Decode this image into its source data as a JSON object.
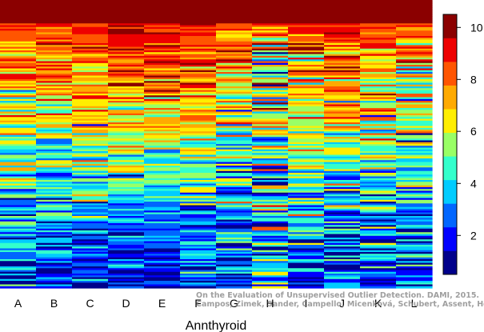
{
  "chart_data": {
    "type": "heatmap",
    "title": "",
    "xlabel": "Annthyroid",
    "ylabel": "",
    "categories": [
      "A",
      "B",
      "C",
      "D",
      "E",
      "F",
      "G",
      "H",
      "I",
      "J",
      "K",
      "L"
    ],
    "colorbar": {
      "range": [
        0.5,
        10.5
      ],
      "ticks": [
        2,
        4,
        6,
        8,
        10
      ],
      "colors": [
        "#00008B",
        "#0000FF",
        "#0066FF",
        "#00CCFF",
        "#33FFCC",
        "#99FF66",
        "#FFEE00",
        "#FFAA00",
        "#FF5500",
        "#EE0000",
        "#8B0000"
      ]
    },
    "rows": 160,
    "column_profiles": {
      "description_values": "mean rank (1-11) at fractional row positions 0,0.25,0.5,0.75,1 from top to bottom",
      "A": [
        10,
        8,
        6,
        4,
        2
      ],
      "B": [
        10,
        8,
        5.5,
        3.5,
        2
      ],
      "C": [
        10.5,
        8.5,
        6.5,
        3.5,
        1.5
      ],
      "D": [
        10.5,
        9,
        6.5,
        3.5,
        1.5
      ],
      "E": [
        10.5,
        9,
        6,
        3.5,
        1.5
      ],
      "F": [
        10.5,
        8.5,
        6,
        3.5,
        2
      ],
      "G": [
        10.5,
        8,
        5.5,
        4,
        2
      ],
      "H": [
        10.5,
        6,
        5,
        4,
        3
      ],
      "I": [
        10.5,
        7.5,
        6,
        4.5,
        2.5
      ],
      "J": [
        10.5,
        8.5,
        6,
        4,
        2.5
      ],
      "K": [
        10.5,
        7,
        5,
        3.5,
        2
      ],
      "L": [
        10,
        7,
        5,
        3.5,
        2
      ]
    },
    "noise": [
      1.6,
      1.6,
      1.4,
      1.3,
      1.2,
      1.5,
      1.8,
      2.6,
      2.0,
      1.7,
      2.0,
      1.8
    ]
  },
  "watermark": {
    "line1": "On the Evaluation of Unsupervised Outlier Detection. DAMI, 2015.",
    "line2": "Campos, Zimek, Sander, Campello, Micenková, Schubert, Assent, Houle"
  }
}
